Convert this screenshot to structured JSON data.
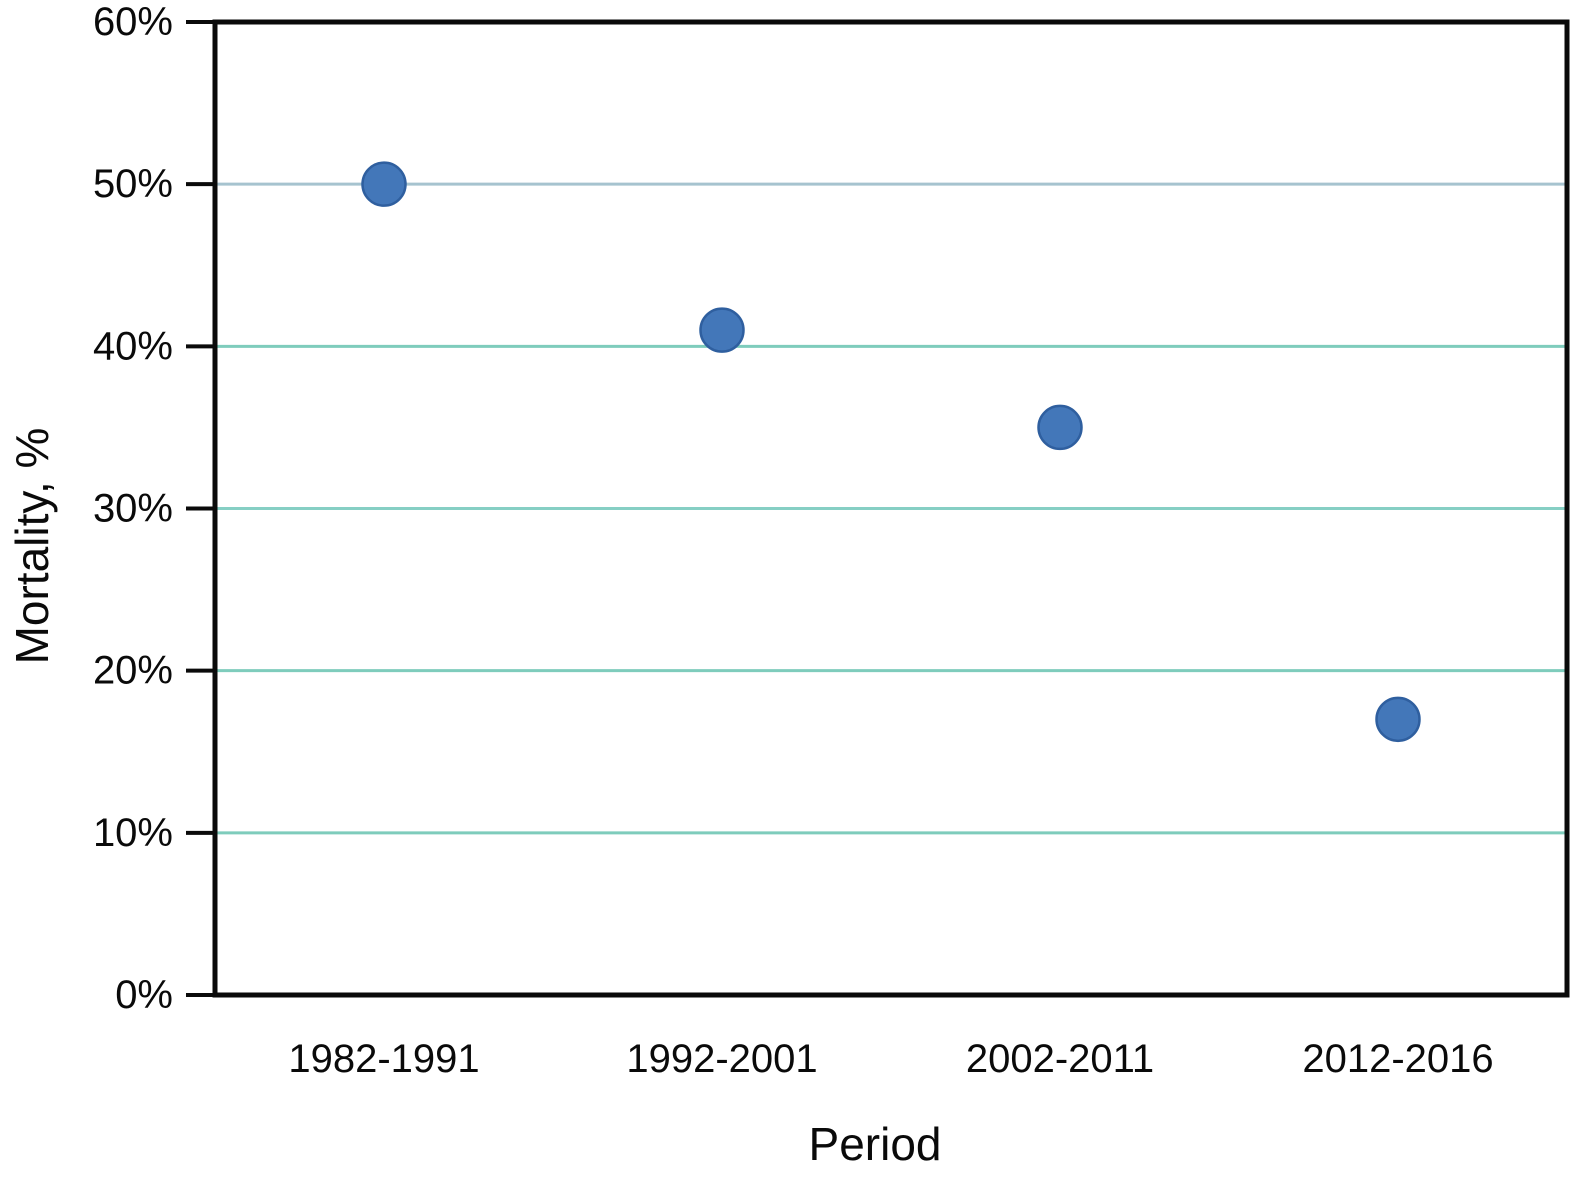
{
  "chart_data": {
    "type": "scatter",
    "title": "",
    "xlabel": "Period",
    "ylabel": "Mortality, %",
    "categories": [
      "1982-1991",
      "1992-2001",
      "2002-2011",
      "2012-2016"
    ],
    "values": [
      50,
      41,
      35,
      17
    ],
    "values_unit": "%",
    "ylim": [
      0,
      60
    ],
    "yticks": [
      0,
      10,
      20,
      30,
      40,
      50,
      60
    ],
    "ytick_labels": [
      "0%",
      "10%",
      "20%",
      "30%",
      "40%",
      "50%",
      "60%"
    ],
    "grid": "horizontal",
    "legend": "none",
    "gridlines": [
      {
        "value": 10,
        "color": "#7eccbc"
      },
      {
        "value": 20,
        "color": "#7eccbc"
      },
      {
        "value": 30,
        "color": "#86cfc4"
      },
      {
        "value": 40,
        "color": "#7eccbc"
      },
      {
        "value": 50,
        "color": "#a6c3cf"
      }
    ],
    "colors": {
      "marker_fill": "#4377b9",
      "marker_edge": "#2f5f9f",
      "axis": "#0a0a0a",
      "text": "#0a0a0a",
      "background": "#ffffff"
    }
  }
}
